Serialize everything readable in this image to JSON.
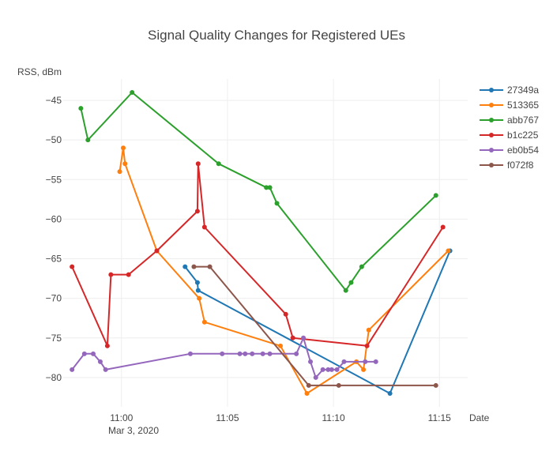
{
  "chart_data": {
    "type": "line",
    "title": "Signal Quality Changes for Registered UEs",
    "ylabel": "RSS, dBm",
    "xlabel": "Date",
    "x_date_label": "Mar 3, 2020",
    "xlim": [
      "10:57:15",
      "11:16:20"
    ],
    "ylim": [
      -83.7,
      -42.3
    ],
    "grid": true,
    "legend_position": "right",
    "x_ticks": [
      {
        "label": "11:00",
        "value": "11:00:00"
      },
      {
        "label": "11:05",
        "value": "11:05:00"
      },
      {
        "label": "11:10",
        "value": "11:10:00"
      },
      {
        "label": "11:15",
        "value": "11:15:00"
      }
    ],
    "y_ticks": [
      {
        "label": "−45",
        "value": -45
      },
      {
        "label": "−50",
        "value": -50
      },
      {
        "label": "−55",
        "value": -55
      },
      {
        "label": "−60",
        "value": -60
      },
      {
        "label": "−65",
        "value": -65
      },
      {
        "label": "−70",
        "value": -70
      },
      {
        "label": "−75",
        "value": -75
      },
      {
        "label": "−80",
        "value": -80
      }
    ],
    "series": [
      {
        "name": "27349a",
        "color": "#1f77b4",
        "points": [
          [
            "11:03:00",
            -66
          ],
          [
            "11:03:35",
            -68
          ],
          [
            "11:03:37",
            -69
          ],
          [
            "11:12:40",
            -82
          ],
          [
            "11:15:30",
            -64
          ]
        ]
      },
      {
        "name": "513365",
        "color": "#ff7f0e",
        "points": [
          [
            "10:59:55",
            -54
          ],
          [
            "11:00:05",
            -51
          ],
          [
            "11:00:10",
            -53
          ],
          [
            "11:01:40",
            -64
          ],
          [
            "11:03:40",
            -70
          ],
          [
            "11:03:55",
            -73
          ],
          [
            "11:07:30",
            -76
          ],
          [
            "11:08:45",
            -82
          ],
          [
            "11:11:05",
            -78
          ],
          [
            "11:11:25",
            -79
          ],
          [
            "11:11:40",
            -74
          ],
          [
            "11:15:25",
            -64
          ]
        ]
      },
      {
        "name": "abb767",
        "color": "#2ca02c",
        "points": [
          [
            "10:58:05",
            -46
          ],
          [
            "10:58:25",
            -50
          ],
          [
            "11:00:30",
            -44
          ],
          [
            "11:04:35",
            -53
          ],
          [
            "11:06:50",
            -56
          ],
          [
            "11:07:00",
            -56
          ],
          [
            "11:07:20",
            -58
          ],
          [
            "11:10:35",
            -69
          ],
          [
            "11:10:50",
            -68
          ],
          [
            "11:11:20",
            -66
          ],
          [
            "11:14:50",
            -57
          ]
        ]
      },
      {
        "name": "b1c225",
        "color": "#d62728",
        "points": [
          [
            "10:57:40",
            -66
          ],
          [
            "10:59:20",
            -76
          ],
          [
            "10:59:30",
            -67
          ],
          [
            "11:00:20",
            -67
          ],
          [
            "11:01:40",
            -64
          ],
          [
            "11:03:35",
            -59
          ],
          [
            "11:03:37",
            -53
          ],
          [
            "11:03:55",
            -61
          ],
          [
            "11:07:45",
            -72
          ],
          [
            "11:08:05",
            -75
          ],
          [
            "11:11:35",
            -76
          ],
          [
            "11:15:10",
            -61
          ]
        ]
      },
      {
        "name": "eb0b54",
        "color": "#9467bd",
        "points": [
          [
            "10:57:40",
            -79
          ],
          [
            "10:58:15",
            -77
          ],
          [
            "10:58:40",
            -77
          ],
          [
            "10:59:00",
            -78
          ],
          [
            "10:59:15",
            -79
          ],
          [
            "11:03:15",
            -77
          ],
          [
            "11:04:45",
            -77
          ],
          [
            "11:05:35",
            -77
          ],
          [
            "11:05:50",
            -77
          ],
          [
            "11:06:10",
            -77
          ],
          [
            "11:06:40",
            -77
          ],
          [
            "11:07:00",
            -77
          ],
          [
            "11:08:15",
            -77
          ],
          [
            "11:08:35",
            -75
          ],
          [
            "11:08:55",
            -78
          ],
          [
            "11:09:10",
            -80
          ],
          [
            "11:09:30",
            -79
          ],
          [
            "11:09:45",
            -79
          ],
          [
            "11:09:55",
            -79
          ],
          [
            "11:10:10",
            -79
          ],
          [
            "11:10:30",
            -78
          ],
          [
            "11:11:30",
            -78
          ],
          [
            "11:12:00",
            -78
          ]
        ]
      },
      {
        "name": "f072f8",
        "color": "#8c564b",
        "points": [
          [
            "11:03:25",
            -66
          ],
          [
            "11:04:10",
            -66
          ],
          [
            "11:08:50",
            -81
          ],
          [
            "11:10:15",
            -81
          ],
          [
            "11:14:50",
            -81
          ]
        ]
      }
    ]
  }
}
